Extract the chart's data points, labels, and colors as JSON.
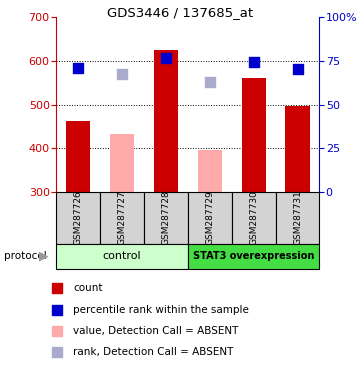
{
  "title": "GDS3446 / 137685_at",
  "samples": [
    "GSM287726",
    "GSM287727",
    "GSM287728",
    "GSM287729",
    "GSM287730",
    "GSM287731"
  ],
  "ylim": [
    300,
    700
  ],
  "yticks_left": [
    300,
    400,
    500,
    600,
    700
  ],
  "yticks_right": [
    0,
    25,
    50,
    75,
    100
  ],
  "bar_values": [
    462,
    null,
    625,
    null,
    562,
    497
  ],
  "bar_absent_values": [
    null,
    432,
    null,
    396,
    null,
    null
  ],
  "bar_color": "#cc0000",
  "bar_absent_color": "#ffaaaa",
  "dot_values": [
    585,
    null,
    607,
    null,
    597,
    582
  ],
  "dot_absent_values": [
    null,
    570,
    null,
    552,
    null,
    null
  ],
  "dot_color": "#0000cc",
  "dot_absent_color": "#aaaacc",
  "control_label": "control",
  "overexpression_label": "STAT3 overexpression",
  "control_color": "#ccffcc",
  "overexpression_color": "#44dd44",
  "protocol_label": "protocol",
  "legend_items": [
    {
      "label": "count",
      "color": "#cc0000"
    },
    {
      "label": "percentile rank within the sample",
      "color": "#0000cc"
    },
    {
      "label": "value, Detection Call = ABSENT",
      "color": "#ffaaaa"
    },
    {
      "label": "rank, Detection Call = ABSENT",
      "color": "#aaaacc"
    }
  ],
  "bar_width": 0.55,
  "dot_size": 45,
  "ylabel_left_color": "#cc0000",
  "ylabel_right_color": "#0000cc",
  "grid_color": "#000000",
  "grid_vals": [
    400,
    500,
    600
  ],
  "sample_box_color": "#d3d3d3",
  "protocol_arrow_color": "#999999"
}
